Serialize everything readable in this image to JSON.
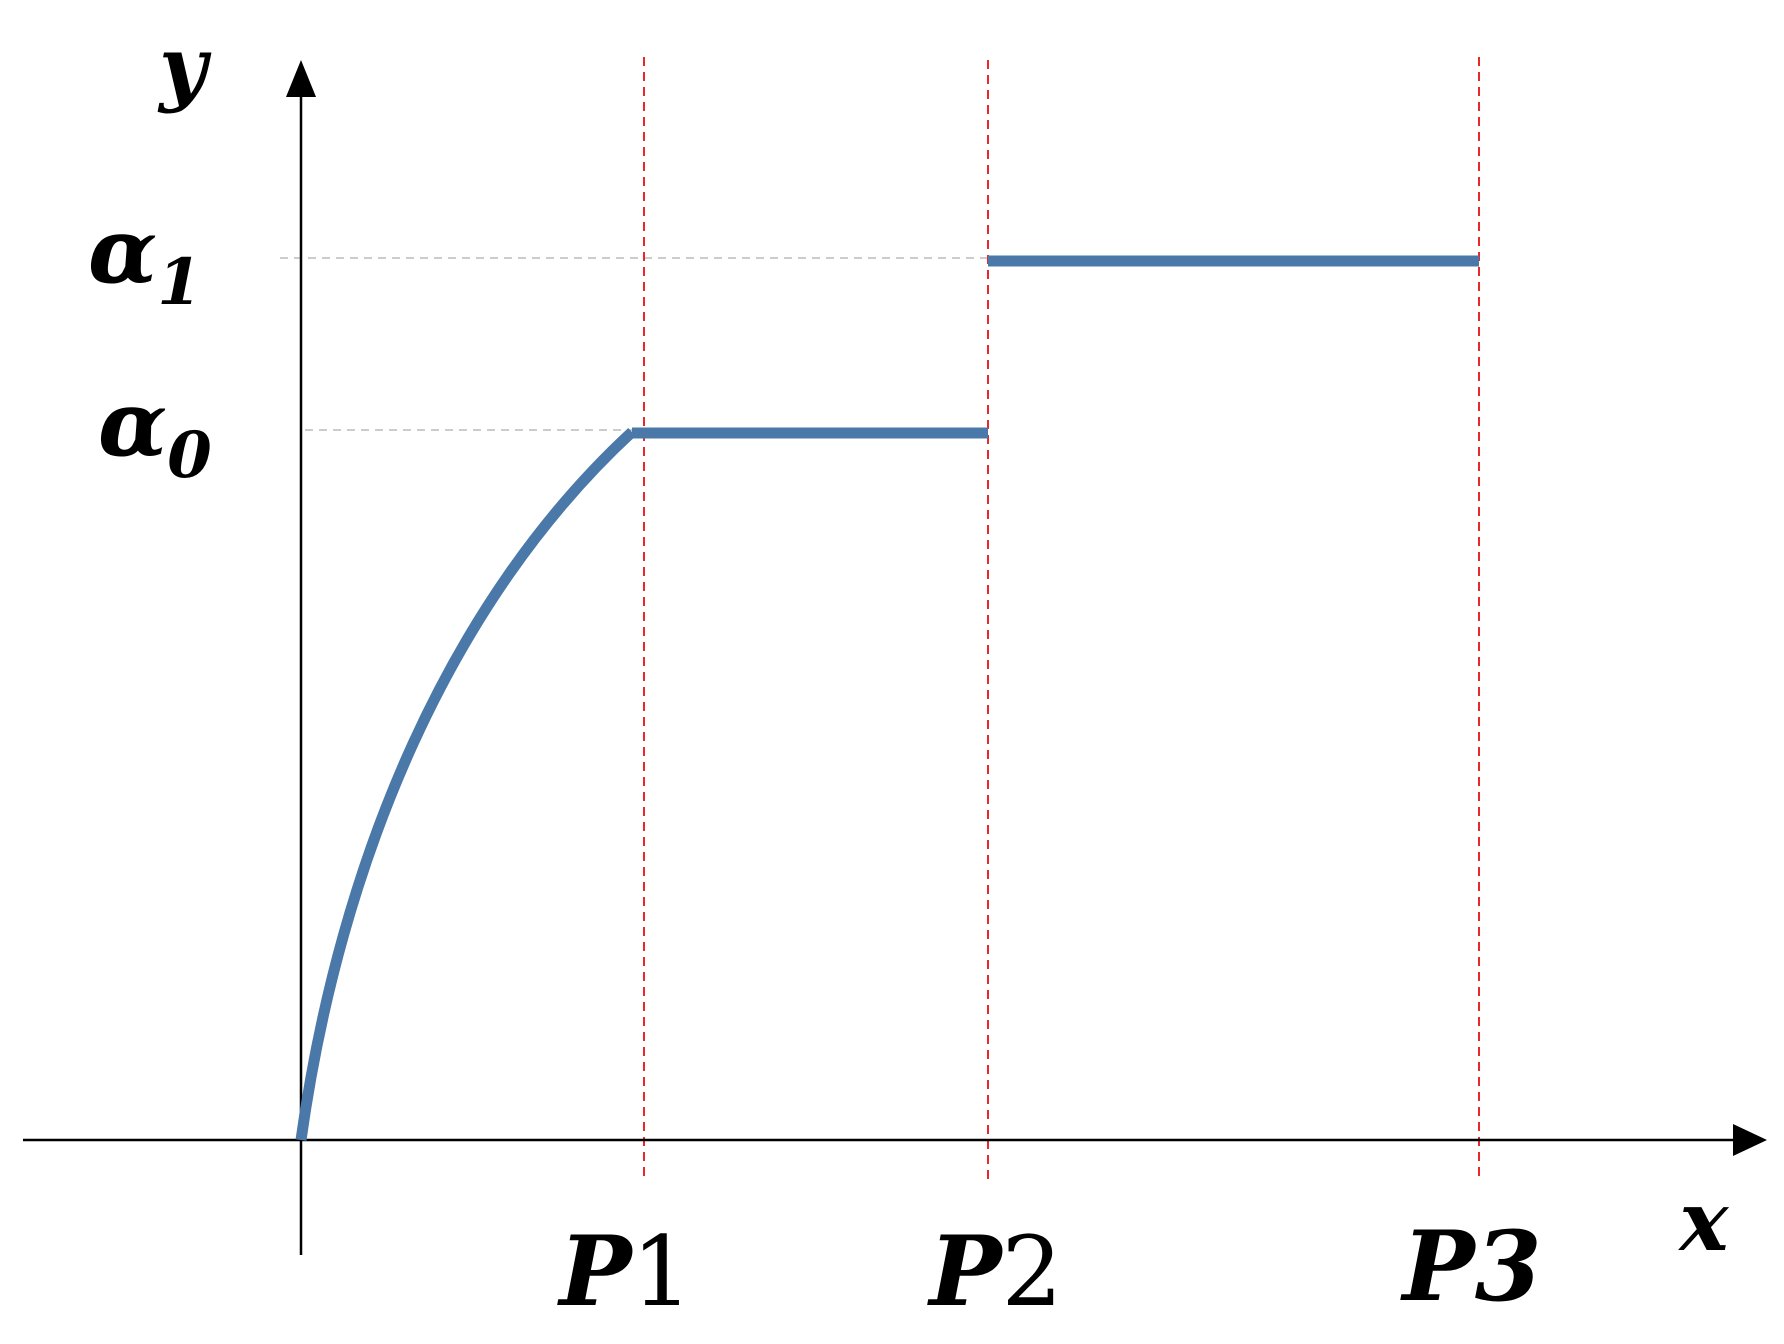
{
  "axes": {
    "y_label": "y",
    "x_label": "x"
  },
  "y_levels": [
    {
      "symbol": "α",
      "subscript": "1"
    },
    {
      "symbol": "α",
      "subscript": "0"
    }
  ],
  "x_points": [
    {
      "symbol": "P",
      "index": "1"
    },
    {
      "symbol": "P",
      "index": "2"
    },
    {
      "symbol": "P",
      "index": "3"
    }
  ]
}
